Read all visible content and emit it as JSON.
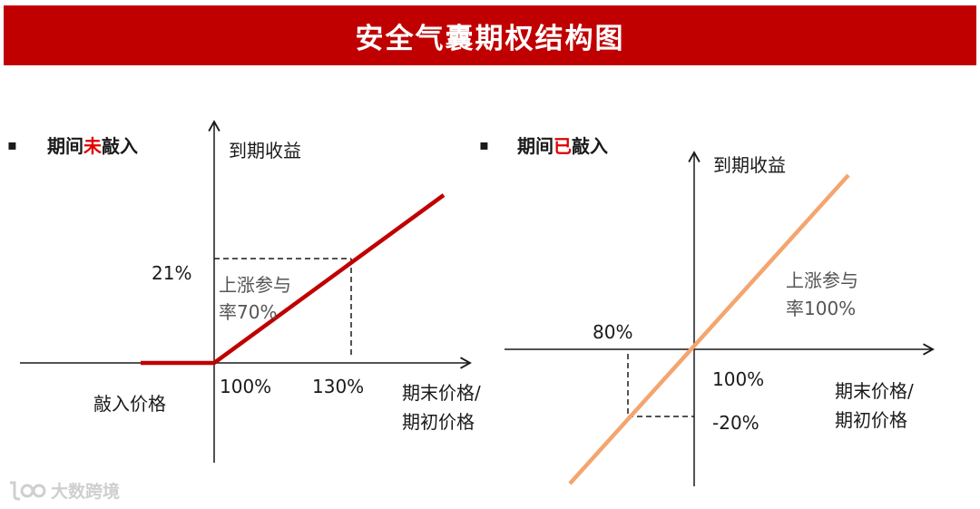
{
  "title": "安全气囊期权结构图",
  "left": {
    "heading_pre": "期间",
    "heading_hl": "未",
    "heading_post": "敲入",
    "y_axis_label": "到期收益",
    "y_value_label": "21%",
    "participation_line1": "上涨参与",
    "participation_line2": "率70%",
    "knockin_label": "敲入价格",
    "x_tick_1": "100%",
    "x_tick_2": "130%",
    "x_axis_line1": "期末价格/",
    "x_axis_line2": "期初价格"
  },
  "right": {
    "heading_pre": "期间",
    "heading_hl": "已",
    "heading_post": "敲入",
    "y_axis_label": "到期收益",
    "participation_line1": "上涨参与",
    "participation_line2": "率100%",
    "x_value_label": "80%",
    "x_tick": "100%",
    "y_value_label": "-20%",
    "x_axis_line1": "期末价格/",
    "x_axis_line2": "期初价格"
  },
  "bullet_symbol": "▪",
  "watermark": "大数跨境",
  "colors": {
    "banner": "#c00000",
    "left_payoff": "#c00000",
    "right_payoff": "#f4a56f",
    "highlight": "#e00000"
  }
}
